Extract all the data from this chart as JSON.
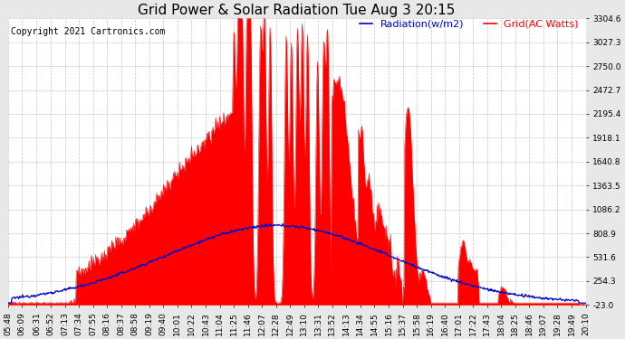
{
  "title": "Grid Power & Solar Radiation Tue Aug 3 20:15",
  "copyright": "Copyright 2021 Cartronics.com",
  "legend_radiation": "Radiation(w/m2)",
  "legend_grid": "Grid(AC Watts)",
  "ylabel_right_ticks": [
    -23.0,
    254.3,
    531.6,
    808.9,
    1086.2,
    1363.5,
    1640.8,
    1918.1,
    2195.4,
    2472.7,
    2750.0,
    3027.3,
    3304.6
  ],
  "ymin": -23.0,
  "ymax": 3304.6,
  "background_color": "#e8e8e8",
  "plot_bg_color": "#ffffff",
  "grid_color": "#aaaaaa",
  "fill_color": "#ff0000",
  "line_color_grid": "#ff0000",
  "line_color_radiation": "#0000cc",
  "title_fontsize": 11,
  "copyright_fontsize": 7,
  "legend_fontsize": 8,
  "tick_fontsize": 6.5,
  "x_tick_labels": [
    "05:48",
    "06:09",
    "06:31",
    "06:52",
    "07:13",
    "07:34",
    "07:55",
    "08:16",
    "08:37",
    "08:58",
    "09:19",
    "09:40",
    "10:01",
    "10:22",
    "10:43",
    "11:04",
    "11:25",
    "11:46",
    "12:07",
    "12:28",
    "12:49",
    "13:10",
    "13:31",
    "13:52",
    "14:13",
    "14:34",
    "14:55",
    "15:16",
    "15:37",
    "15:58",
    "16:19",
    "16:40",
    "17:01",
    "17:22",
    "17:43",
    "18:04",
    "18:25",
    "18:46",
    "19:07",
    "19:28",
    "19:49",
    "20:10"
  ]
}
